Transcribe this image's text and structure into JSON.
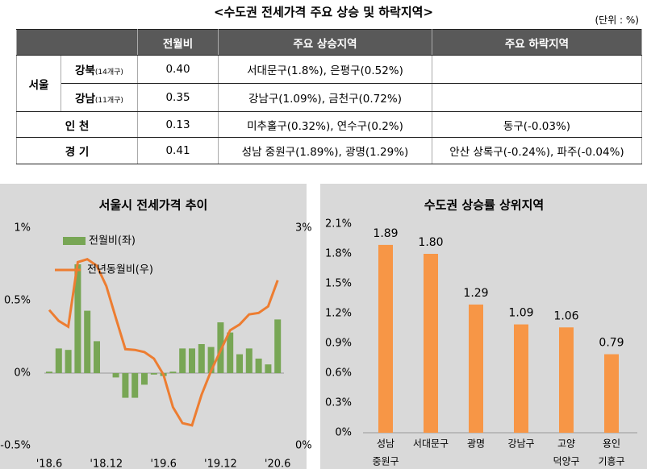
{
  "title": "<수도권 전세가격 주요 상승 및 하락지역>",
  "unit": "(단위 : %)",
  "table": {
    "columns": [
      "전월비",
      "주요 상승지역",
      "주요 하락지역"
    ],
    "rows": [
      {
        "region": "서울",
        "name": "강북",
        "note": "(14개구)",
        "mom": "0.40",
        "up": "서대문구(1.8%), 은평구(0.52%)"
      },
      {
        "name": "강남",
        "note": "(11개구)",
        "mom": "0.35",
        "up": "강남구(1.09%), 금천구(0.72%)"
      },
      {
        "region": "인 천",
        "mom": "0.13",
        "up": "미추홀구(0.32%), 연수구(0.2%)",
        "down": "동구(-0.03%)"
      },
      {
        "region": "경 기",
        "mom": "0.41",
        "up": "성남 중원구(1.89%), 광명(1.29%)",
        "down": "안산 상록구(-0.24%), 파주(-0.04%)"
      }
    ]
  },
  "chart_data": [
    {
      "type": "bar-line",
      "title": "서울시 전세가격 추이",
      "categories": [
        "'18.6",
        null,
        null,
        null,
        null,
        null,
        "'18.12",
        null,
        null,
        null,
        null,
        null,
        "'19.6",
        null,
        null,
        null,
        null,
        null,
        "'19.12",
        null,
        null,
        null,
        null,
        null,
        "'20.6"
      ],
      "series": [
        {
          "name": "전월비(좌)",
          "color": "#78a655",
          "values": [
            0.01,
            0.17,
            0.16,
            0.75,
            0.43,
            0.22,
            0,
            -0.03,
            -0.17,
            -0.17,
            -0.08,
            -0.01,
            -0.02,
            0.01,
            0.17,
            0.17,
            0.2,
            0.18,
            0.35,
            0.28,
            0.13,
            0.17,
            0.1,
            0.06,
            0.37
          ]
        },
        {
          "name": "전년동월비(우)",
          "color": "#ed7d31",
          "axis": "y2",
          "values": [
            1.87,
            1.72,
            1.64,
            2.53,
            2.57,
            2.48,
            2.2,
            1.76,
            1.33,
            1.32,
            1.29,
            1.2,
            0.98,
            0.53,
            0.31,
            0.28,
            0.7,
            1.03,
            1.31,
            1.59,
            1.67,
            1.81,
            1.83,
            1.92,
            2.28
          ]
        }
      ],
      "ylim": [
        -0.5,
        1
      ],
      "yticks": [
        {
          "value": -0.5,
          "label": "-0.5%"
        },
        {
          "value": 0,
          "label": "0%"
        },
        {
          "value": 0.5,
          "label": "0.5%"
        },
        {
          "value": 1,
          "label": "1%"
        }
      ],
      "y2lim": [
        0,
        3
      ],
      "y2ticks": [
        {
          "value": 0,
          "label": "0%"
        },
        {
          "value": 3,
          "label": "3%"
        }
      ],
      "legend": "upper left"
    },
    {
      "type": "bar",
      "title": "수도권 상승률 상위지역",
      "categories": [
        [
          "성남",
          "중원구"
        ],
        [
          "서대문구"
        ],
        [
          "광명"
        ],
        [
          "강남구"
        ],
        [
          "고양",
          "덕양구"
        ],
        [
          "용인",
          "기흥구"
        ]
      ],
      "values": [
        1.89,
        1.8,
        1.29,
        1.09,
        1.06,
        0.79
      ],
      "value_labels": [
        "1.89",
        "1.80",
        "1.29",
        "1.09",
        "1.06",
        "0.79"
      ],
      "color": "#f79646",
      "ylim": [
        0,
        2.1
      ],
      "yticks": [
        {
          "value": 0,
          "label": "0%"
        },
        {
          "value": 0.3,
          "label": "0.3%"
        },
        {
          "value": 0.6,
          "label": "0.6%"
        },
        {
          "value": 0.9,
          "label": "0.9%"
        },
        {
          "value": 1.2,
          "label": "1.2%"
        },
        {
          "value": 1.5,
          "label": "1.5%"
        },
        {
          "value": 1.8,
          "label": "1.8%"
        },
        {
          "value": 2.1,
          "label": "2.1%"
        }
      ]
    }
  ]
}
